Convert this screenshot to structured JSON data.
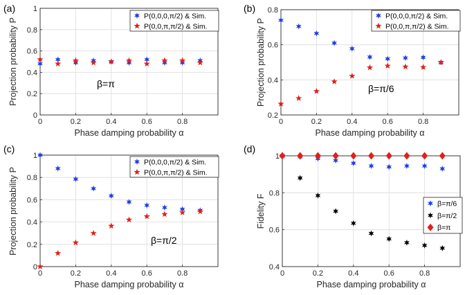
{
  "chart_data": [
    {
      "type": "scatter",
      "panel_label": "(a)",
      "xlabel": "Phase damping probability α",
      "ylabel": "Projection probability P",
      "xlim": [
        0,
        1
      ],
      "ylim": [
        0,
        1
      ],
      "xticks": [
        "0",
        "0.2",
        "0.4",
        "0.6",
        "0.8"
      ],
      "yticks": [
        "0",
        "0.2",
        "0.4",
        "0.6",
        "0.8",
        "1"
      ],
      "grid": true,
      "legend_position": "top-right",
      "annotation": "β=π",
      "series": [
        {
          "name": "P(0,0,0,π/2) & Sim.",
          "color": "#1f3fe6",
          "marker": "star",
          "x": [
            0,
            0.1,
            0.2,
            0.3,
            0.4,
            0.5,
            0.6,
            0.7,
            0.8,
            0.9
          ],
          "y": [
            0.48,
            0.52,
            0.49,
            0.51,
            0.5,
            0.49,
            0.52,
            0.49,
            0.49,
            0.51
          ]
        },
        {
          "name": "P(0,0,π,π/2) & Sim.",
          "color": "#e0201b",
          "marker": "star",
          "x": [
            0,
            0.1,
            0.2,
            0.3,
            0.4,
            0.5,
            0.6,
            0.7,
            0.8,
            0.9
          ],
          "y": [
            0.52,
            0.48,
            0.51,
            0.49,
            0.5,
            0.51,
            0.48,
            0.51,
            0.51,
            0.49
          ]
        }
      ]
    },
    {
      "type": "scatter",
      "panel_label": "(b)",
      "xlabel": "Phase damping probability α",
      "ylabel": "Projection probability P",
      "xlim": [
        0,
        1
      ],
      "ylim": [
        0.2,
        0.8
      ],
      "xticks": [
        "0",
        "0.2",
        "0.4",
        "0.6",
        "0.8"
      ],
      "yticks": [
        "0.2",
        "0.4",
        "0.6",
        "0.8"
      ],
      "grid": true,
      "legend_position": "top-right",
      "annotation": "β=π/6",
      "series": [
        {
          "name": "P(0,0,0,π/2) & Sim.",
          "color": "#1f3fe6",
          "marker": "star",
          "x": [
            0,
            0.1,
            0.2,
            0.3,
            0.4,
            0.5,
            0.6,
            0.7,
            0.8,
            0.9
          ],
          "y": [
            0.74,
            0.705,
            0.665,
            0.61,
            0.578,
            0.53,
            0.52,
            0.525,
            0.528,
            0.5
          ]
        },
        {
          "name": "P(0,0,π,π/2) & Sim.",
          "color": "#e0201b",
          "marker": "star",
          "x": [
            0,
            0.1,
            0.2,
            0.3,
            0.4,
            0.5,
            0.6,
            0.7,
            0.8,
            0.9
          ],
          "y": [
            0.263,
            0.295,
            0.335,
            0.39,
            0.422,
            0.47,
            0.48,
            0.475,
            0.472,
            0.5
          ]
        }
      ]
    },
    {
      "type": "scatter",
      "panel_label": "(c)",
      "xlabel": "Phase damping probability α",
      "ylabel": "Projection probability P",
      "xlim": [
        0,
        1
      ],
      "ylim": [
        0,
        1
      ],
      "xticks": [
        "0",
        "0.2",
        "0.4",
        "0.6",
        "0.8"
      ],
      "yticks": [
        "0",
        "0.2",
        "0.4",
        "0.6",
        "0.8",
        "1"
      ],
      "grid": true,
      "legend_position": "top-right",
      "annotation": "β=π/2",
      "series": [
        {
          "name": "P(0,0,0,π/2) & Sim.",
          "color": "#1f3fe6",
          "marker": "star",
          "x": [
            0,
            0.1,
            0.2,
            0.3,
            0.4,
            0.5,
            0.6,
            0.7,
            0.8,
            0.9
          ],
          "y": [
            1.0,
            0.88,
            0.785,
            0.7,
            0.635,
            0.58,
            0.55,
            0.53,
            0.515,
            0.505
          ]
        },
        {
          "name": "P(0,0,π,π/2) & Sim.",
          "color": "#e0201b",
          "marker": "star",
          "x": [
            0,
            0.1,
            0.2,
            0.3,
            0.4,
            0.5,
            0.6,
            0.7,
            0.8,
            0.9
          ],
          "y": [
            0.0,
            0.12,
            0.215,
            0.3,
            0.365,
            0.42,
            0.45,
            0.47,
            0.485,
            0.495
          ]
        }
      ]
    },
    {
      "type": "scatter",
      "panel_label": "(d)",
      "xlabel": "Phase damping probability α",
      "ylabel": "Fidelity F",
      "xlim": [
        0,
        1
      ],
      "ylim": [
        0.4,
        1.0
      ],
      "xticks": [
        "0",
        "0.2",
        "0.4",
        "0.6",
        "0.8"
      ],
      "yticks": [
        "0.4",
        "0.6",
        "0.8",
        "1"
      ],
      "grid": true,
      "legend_position": "bottom-right",
      "series": [
        {
          "name": "β=π/6",
          "color": "#1f3fe6",
          "marker": "star",
          "x": [
            0,
            0.1,
            0.2,
            0.3,
            0.4,
            0.5,
            0.6,
            0.7,
            0.8,
            0.9
          ],
          "y": [
            1.0,
            0.995,
            0.985,
            0.975,
            0.96,
            0.945,
            0.94,
            0.945,
            0.945,
            0.93
          ]
        },
        {
          "name": "β=π/2",
          "color": "#000000",
          "marker": "star",
          "x": [
            0,
            0.1,
            0.2,
            0.3,
            0.4,
            0.5,
            0.6,
            0.7,
            0.8,
            0.9
          ],
          "y": [
            1.0,
            0.88,
            0.785,
            0.7,
            0.635,
            0.58,
            0.55,
            0.53,
            0.515,
            0.5
          ]
        },
        {
          "name": "β=π",
          "color": "#e0201b",
          "marker": "diamond",
          "x": [
            0,
            0.1,
            0.2,
            0.3,
            0.4,
            0.5,
            0.6,
            0.7,
            0.8,
            0.9
          ],
          "y": [
            1.0,
            1.0,
            1.0,
            1.0,
            1.0,
            1.0,
            1.0,
            1.0,
            1.0,
            1.0
          ]
        }
      ]
    }
  ]
}
